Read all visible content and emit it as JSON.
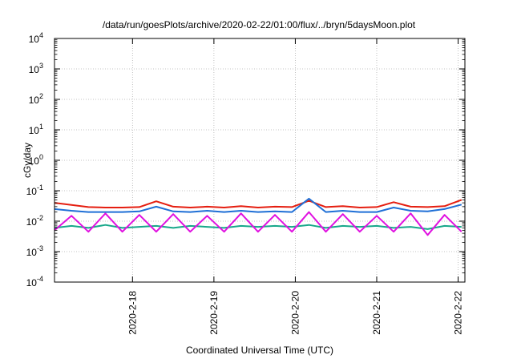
{
  "chart_data": {
    "type": "line",
    "title": "/data/run/goesPlots/archive/2020-02-22/01:00/flux/../bryn/5daysMoon.plot",
    "xlabel": "Coordinated Universal Time (UTC)",
    "ylabel": "cGy/day",
    "yscale": "log",
    "ylim": [
      0.0001,
      10000
    ],
    "y_ticks": [
      {
        "value": 0.0001,
        "base": "10",
        "exp": "-4"
      },
      {
        "value": 0.001,
        "base": "10",
        "exp": "-3"
      },
      {
        "value": 0.01,
        "base": "10",
        "exp": "-2"
      },
      {
        "value": 0.1,
        "base": "10",
        "exp": "-1"
      },
      {
        "value": 1,
        "base": "10",
        "exp": "0"
      },
      {
        "value": 10,
        "base": "10",
        "exp": "1"
      },
      {
        "value": 100,
        "base": "10",
        "exp": "2"
      },
      {
        "value": 1000,
        "base": "10",
        "exp": "3"
      },
      {
        "value": 10000,
        "base": "10",
        "exp": "4"
      }
    ],
    "xlim": [
      "2020-02-17T01:00",
      "2020-02-22T02:00"
    ],
    "x_ticks": [
      {
        "value": "2020-02-18T00:00",
        "label": "2020-2-18"
      },
      {
        "value": "2020-02-19T00:00",
        "label": "2020-2-19"
      },
      {
        "value": "2020-02-20T00:00",
        "label": "2020-2-20"
      },
      {
        "value": "2020-02-21T00:00",
        "label": "2020-2-21"
      },
      {
        "value": "2020-02-22T00:00",
        "label": "2020-2-22"
      }
    ],
    "grid": true,
    "legend": "none",
    "x": [
      "2020-02-17T01:00",
      "2020-02-17T06:00",
      "2020-02-17T11:00",
      "2020-02-17T16:00",
      "2020-02-17T21:00",
      "2020-02-18T02:00",
      "2020-02-18T07:00",
      "2020-02-18T12:00",
      "2020-02-18T17:00",
      "2020-02-18T22:00",
      "2020-02-19T03:00",
      "2020-02-19T08:00",
      "2020-02-19T13:00",
      "2020-02-19T18:00",
      "2020-02-19T23:00",
      "2020-02-20T04:00",
      "2020-02-20T09:00",
      "2020-02-20T14:00",
      "2020-02-20T19:00",
      "2020-02-21T00:00",
      "2020-02-21T05:00",
      "2020-02-21T10:00",
      "2020-02-21T15:00",
      "2020-02-21T20:00",
      "2020-02-22T01:00"
    ],
    "series": [
      {
        "color": "#e51e10",
        "values": [
          0.04,
          0.034,
          0.029,
          0.028,
          0.028,
          0.029,
          0.045,
          0.03,
          0.028,
          0.03,
          0.028,
          0.031,
          0.028,
          0.03,
          0.029,
          0.047,
          0.029,
          0.031,
          0.028,
          0.029,
          0.042,
          0.03,
          0.029,
          0.031,
          0.05
        ]
      },
      {
        "color": "#1f6fd6",
        "values": [
          0.025,
          0.022,
          0.02,
          0.02,
          0.02,
          0.021,
          0.03,
          0.021,
          0.02,
          0.022,
          0.02,
          0.022,
          0.02,
          0.021,
          0.02,
          0.055,
          0.02,
          0.022,
          0.02,
          0.02,
          0.028,
          0.022,
          0.021,
          0.025,
          0.035
        ]
      },
      {
        "color": "#18a88a",
        "values": [
          0.006,
          0.007,
          0.006,
          0.0075,
          0.006,
          0.0065,
          0.007,
          0.006,
          0.007,
          0.0065,
          0.006,
          0.007,
          0.0065,
          0.007,
          0.0065,
          0.0075,
          0.006,
          0.007,
          0.0065,
          0.007,
          0.006,
          0.0065,
          0.0055,
          0.007,
          0.0065
        ]
      },
      {
        "color": "#e010e0",
        "values": [
          0.005,
          0.015,
          0.0045,
          0.018,
          0.0045,
          0.016,
          0.0045,
          0.017,
          0.0045,
          0.015,
          0.0045,
          0.018,
          0.0045,
          0.016,
          0.0045,
          0.02,
          0.0045,
          0.017,
          0.0045,
          0.015,
          0.0045,
          0.018,
          0.0035,
          0.016,
          0.0045
        ]
      }
    ]
  }
}
